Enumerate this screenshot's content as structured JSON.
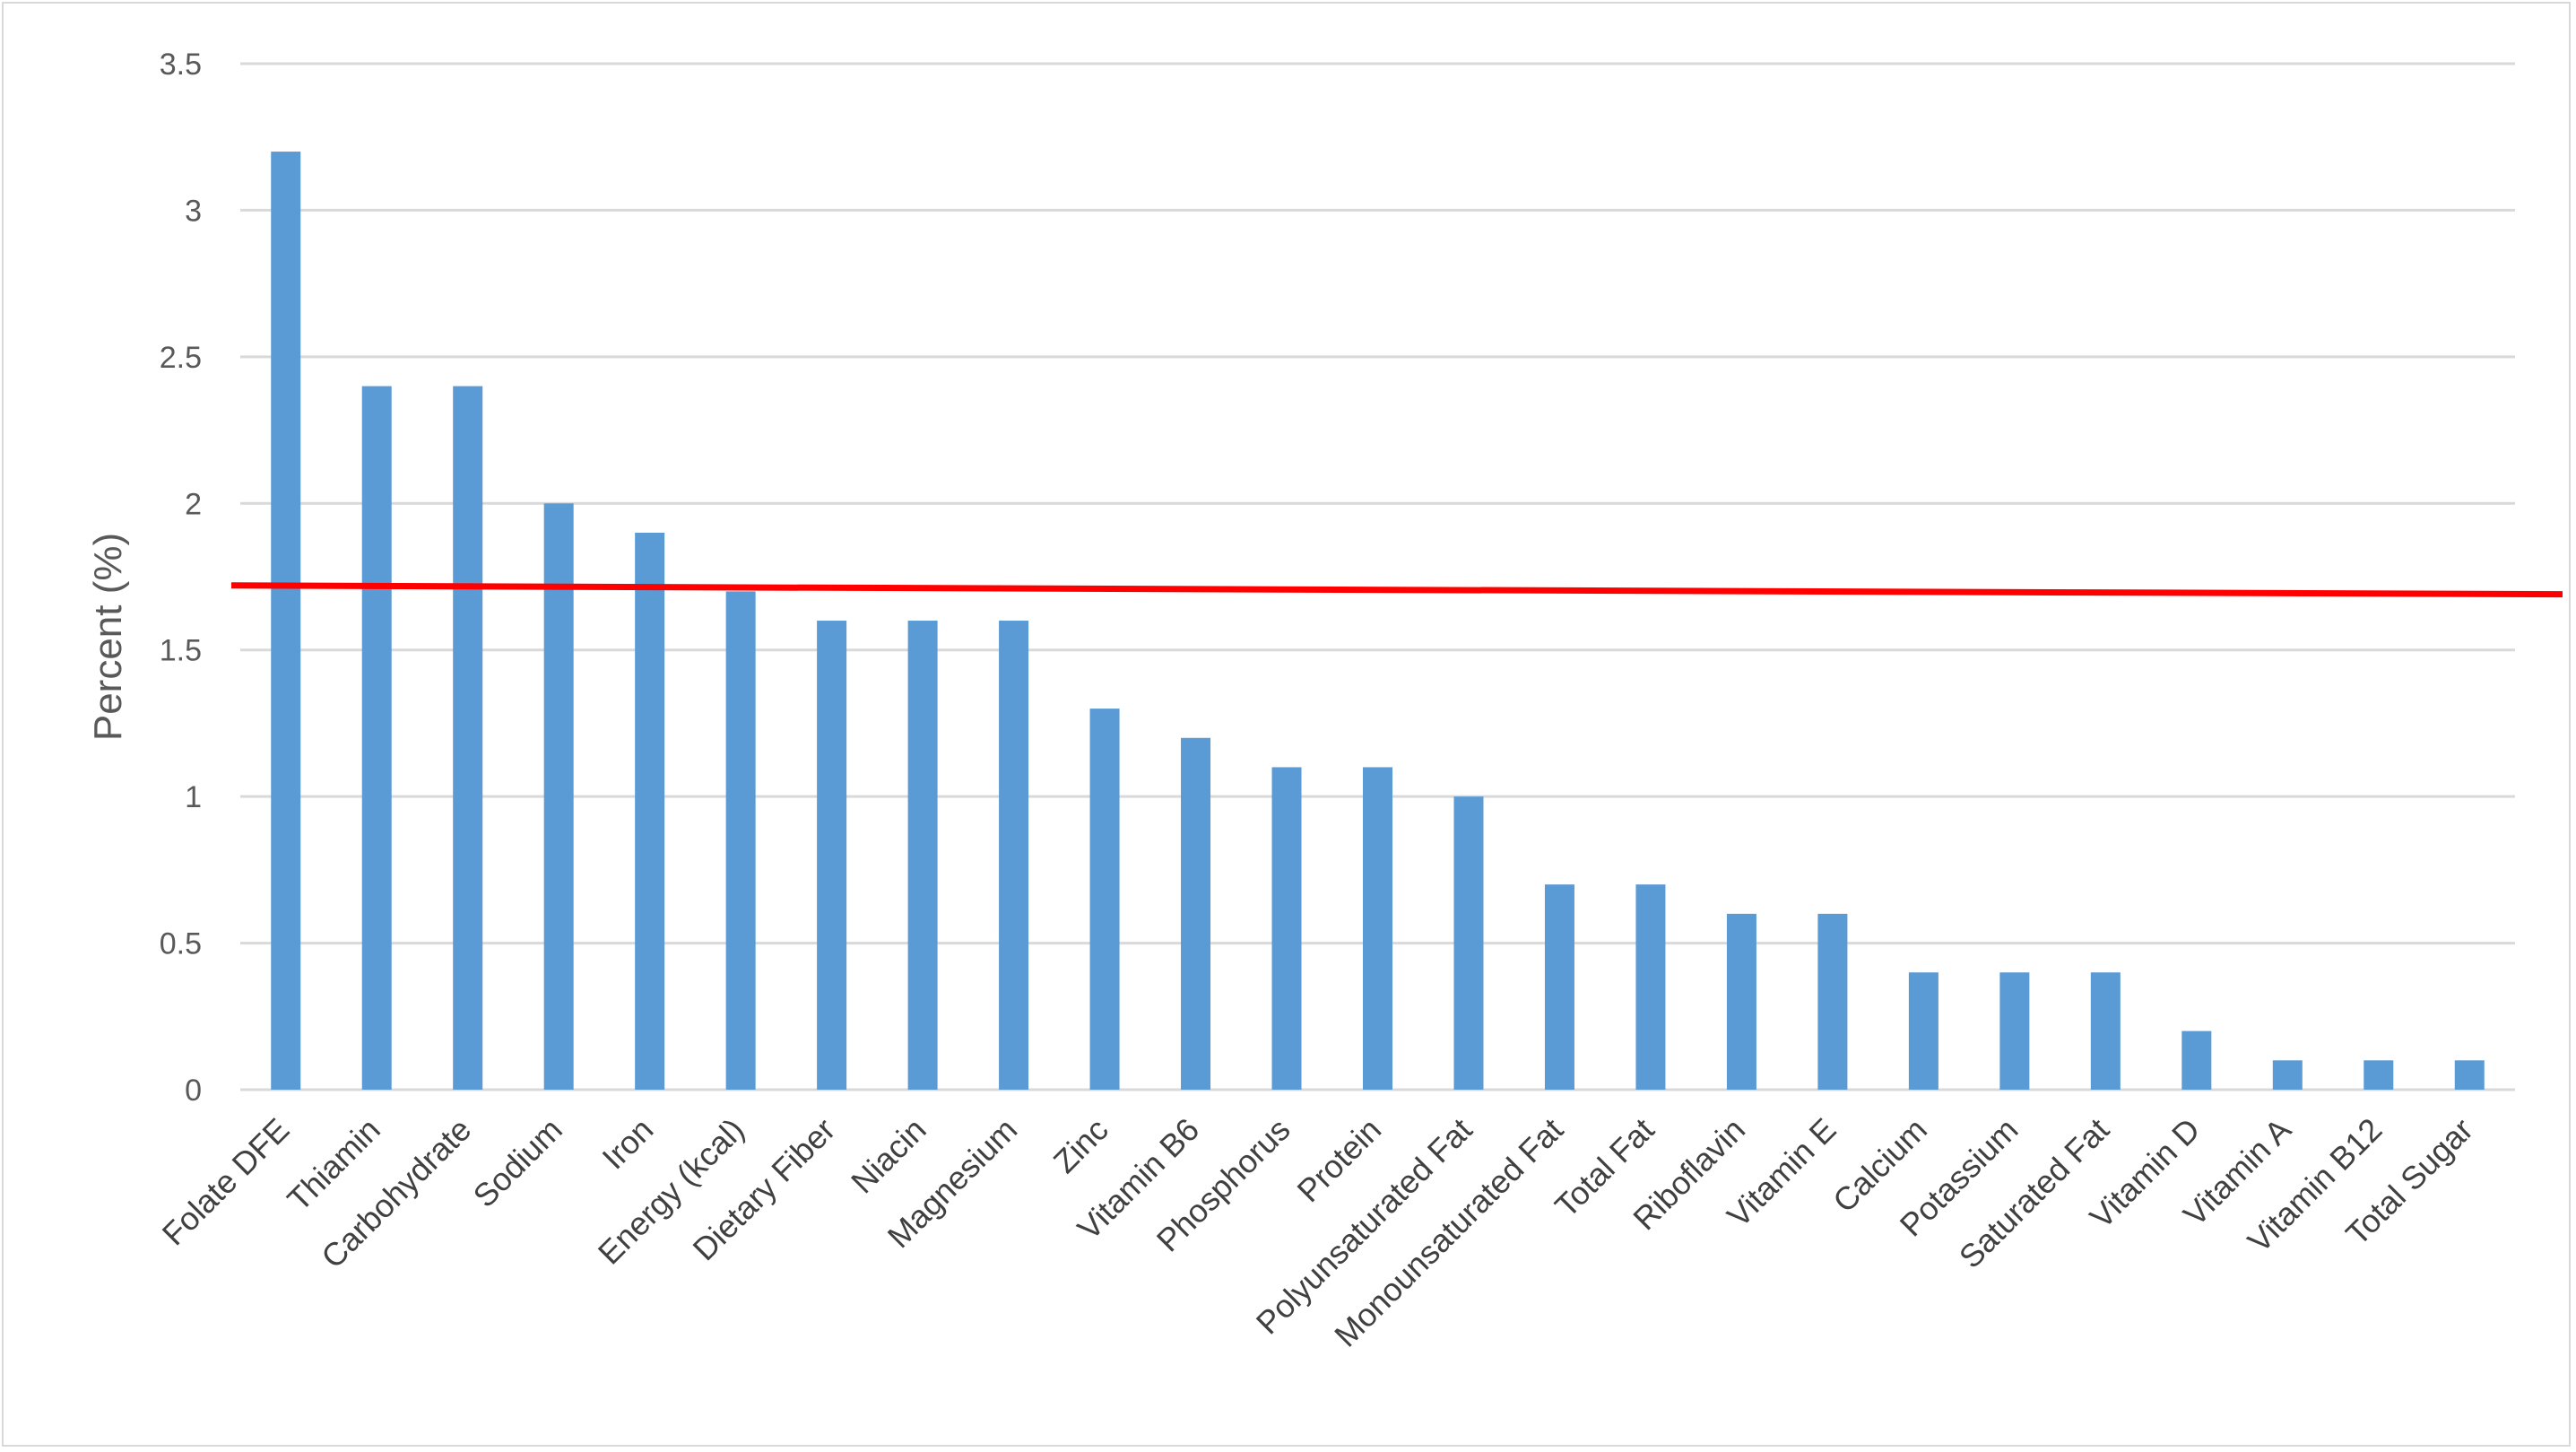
{
  "chart_data": {
    "type": "bar",
    "title": "",
    "xlabel": "",
    "ylabel": "Percent (%)",
    "ylim": [
      0,
      3.5
    ],
    "yticks": [
      "0",
      "0.5",
      "1",
      "1.5",
      "2",
      "2.5",
      "3",
      "3.5"
    ],
    "grid": true,
    "legend": "none",
    "categories": [
      "Folate DFE",
      "Thiamin",
      "Carbohydrate",
      "Sodium",
      "Iron",
      "Energy (kcal)",
      "Dietary Fiber",
      "Niacin",
      "Magnesium",
      "Zinc",
      "Vitamin B6",
      "Phosphorus",
      "Protein",
      "Polyunsaturated Fat",
      "Monounsaturated Fat",
      "Total Fat",
      "Riboflavin",
      "Vitamin E",
      "Calcium",
      "Potassium",
      "Saturated Fat",
      "Vitamin D",
      "Vitamin A",
      "Vitamin B12",
      "Total Sugar"
    ],
    "values": [
      3.2,
      2.4,
      2.4,
      2.0,
      1.9,
      1.7,
      1.6,
      1.6,
      1.6,
      1.3,
      1.2,
      1.1,
      1.1,
      1.0,
      0.7,
      0.7,
      0.6,
      0.6,
      0.4,
      0.4,
      0.4,
      0.2,
      0.1,
      0.1,
      0.1
    ],
    "reference_line": {
      "start_value": 1.72,
      "end_value": 1.69,
      "color": "#ff0000"
    },
    "colors": {
      "bar": "#5b9bd5",
      "grid": "#d9d9d9",
      "reference": "#ff0000"
    }
  }
}
